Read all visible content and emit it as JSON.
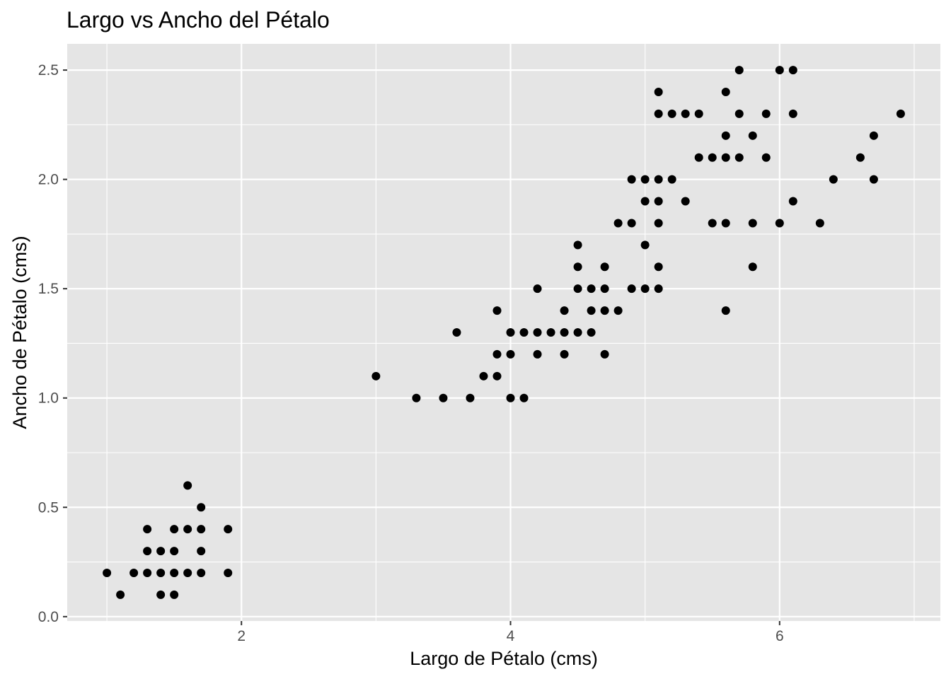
{
  "chart_data": {
    "type": "scatter",
    "title": "Largo vs Ancho del Pétalo",
    "xlabel": "Largo de Pétalo (cms)",
    "ylabel": "Ancho de Pétalo (cms)",
    "xlim": [
      0.705,
      7.195
    ],
    "ylim": [
      -0.02,
      2.62
    ],
    "x_ticks": [
      2,
      4,
      6
    ],
    "x_tick_labels": [
      "2",
      "4",
      "6"
    ],
    "x_minor_ticks": [
      1,
      3,
      5,
      7
    ],
    "y_ticks": [
      0.0,
      0.5,
      1.0,
      1.5,
      2.0,
      2.5
    ],
    "y_tick_labels": [
      "0.0",
      "0.5",
      "1.0",
      "1.5",
      "2.0",
      "2.5"
    ],
    "y_minor_ticks": [
      0.25,
      0.75,
      1.25,
      1.75,
      2.25
    ],
    "grid": true,
    "legend": "none",
    "colors": {
      "panel_background": "#e5e5e5",
      "grid": "#ffffff",
      "point": "#000000",
      "tick_label": "#4d4d4d",
      "tick_mark": "#333333"
    },
    "points": [
      [
        1.0,
        0.2
      ],
      [
        1.1,
        0.1
      ],
      [
        1.2,
        0.2
      ],
      [
        1.3,
        0.2
      ],
      [
        1.3,
        0.3
      ],
      [
        1.3,
        0.4
      ],
      [
        1.4,
        0.1
      ],
      [
        1.4,
        0.2
      ],
      [
        1.4,
        0.3
      ],
      [
        1.5,
        0.1
      ],
      [
        1.5,
        0.2
      ],
      [
        1.5,
        0.3
      ],
      [
        1.5,
        0.4
      ],
      [
        1.6,
        0.2
      ],
      [
        1.6,
        0.4
      ],
      [
        1.6,
        0.6
      ],
      [
        1.7,
        0.2
      ],
      [
        1.7,
        0.3
      ],
      [
        1.7,
        0.4
      ],
      [
        1.7,
        0.5
      ],
      [
        1.9,
        0.2
      ],
      [
        1.9,
        0.4
      ],
      [
        3.0,
        1.1
      ],
      [
        3.3,
        1.0
      ],
      [
        3.5,
        1.0
      ],
      [
        3.6,
        1.3
      ],
      [
        3.7,
        1.0
      ],
      [
        3.8,
        1.1
      ],
      [
        3.9,
        1.1
      ],
      [
        3.9,
        1.2
      ],
      [
        3.9,
        1.4
      ],
      [
        4.0,
        1.0
      ],
      [
        4.0,
        1.2
      ],
      [
        4.0,
        1.3
      ],
      [
        4.1,
        1.0
      ],
      [
        4.1,
        1.3
      ],
      [
        4.2,
        1.2
      ],
      [
        4.2,
        1.3
      ],
      [
        4.2,
        1.5
      ],
      [
        4.3,
        1.3
      ],
      [
        4.4,
        1.2
      ],
      [
        4.4,
        1.3
      ],
      [
        4.4,
        1.4
      ],
      [
        4.5,
        1.3
      ],
      [
        4.5,
        1.5
      ],
      [
        4.5,
        1.6
      ],
      [
        4.5,
        1.7
      ],
      [
        4.6,
        1.3
      ],
      [
        4.6,
        1.4
      ],
      [
        4.6,
        1.5
      ],
      [
        4.7,
        1.2
      ],
      [
        4.7,
        1.4
      ],
      [
        4.7,
        1.5
      ],
      [
        4.7,
        1.6
      ],
      [
        4.8,
        1.4
      ],
      [
        4.8,
        1.8
      ],
      [
        4.9,
        1.5
      ],
      [
        4.9,
        1.8
      ],
      [
        4.9,
        2.0
      ],
      [
        5.0,
        1.5
      ],
      [
        5.0,
        1.7
      ],
      [
        5.0,
        1.9
      ],
      [
        5.0,
        2.0
      ],
      [
        5.1,
        1.5
      ],
      [
        5.1,
        1.6
      ],
      [
        5.1,
        1.8
      ],
      [
        5.1,
        1.9
      ],
      [
        5.1,
        2.0
      ],
      [
        5.1,
        2.3
      ],
      [
        5.1,
        2.4
      ],
      [
        5.2,
        2.0
      ],
      [
        5.2,
        2.3
      ],
      [
        5.3,
        1.9
      ],
      [
        5.3,
        2.3
      ],
      [
        5.4,
        2.1
      ],
      [
        5.4,
        2.3
      ],
      [
        5.5,
        1.8
      ],
      [
        5.5,
        2.1
      ],
      [
        5.6,
        1.4
      ],
      [
        5.6,
        1.8
      ],
      [
        5.6,
        2.1
      ],
      [
        5.6,
        2.2
      ],
      [
        5.6,
        2.4
      ],
      [
        5.7,
        2.1
      ],
      [
        5.7,
        2.3
      ],
      [
        5.7,
        2.5
      ],
      [
        5.8,
        1.6
      ],
      [
        5.8,
        1.8
      ],
      [
        5.8,
        2.2
      ],
      [
        5.9,
        2.1
      ],
      [
        5.9,
        2.3
      ],
      [
        6.0,
        1.8
      ],
      [
        6.0,
        2.5
      ],
      [
        6.1,
        1.9
      ],
      [
        6.1,
        2.3
      ],
      [
        6.1,
        2.5
      ],
      [
        6.3,
        1.8
      ],
      [
        6.4,
        2.0
      ],
      [
        6.6,
        2.1
      ],
      [
        6.7,
        2.0
      ],
      [
        6.7,
        2.2
      ],
      [
        6.9,
        2.3
      ]
    ]
  }
}
